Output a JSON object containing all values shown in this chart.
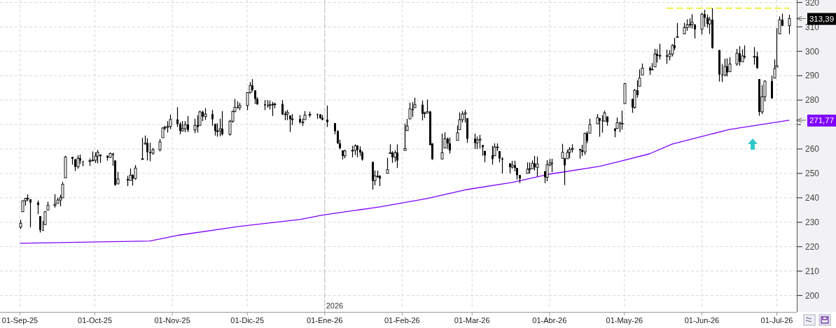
{
  "chart_data": {
    "type": "candlestick",
    "grid": true,
    "xlim": [
      "2025-08-24",
      "2026-07-09"
    ],
    "xticks": [
      {
        "value": "2025-09-01",
        "label": "01-Sep-25"
      },
      {
        "value": "2025-10-01",
        "label": "01-Oct-25"
      },
      {
        "value": "2025-11-01",
        "label": "01-Nov-25"
      },
      {
        "value": "2025-12-01",
        "label": "01-Dic-25"
      },
      {
        "value": "2026-01-01",
        "label": "01-Ene-26"
      },
      {
        "value": "2026-02-01",
        "label": "01-Feb-26"
      },
      {
        "value": "2026-03-01",
        "label": "01-Mar-26"
      },
      {
        "value": "2026-04-01",
        "label": "01-Abr-26"
      },
      {
        "value": "2026-05-01",
        "label": "01-May-26"
      },
      {
        "value": "2026-06-01",
        "label": "01-Jun-26"
      },
      {
        "value": "2026-07-01",
        "label": "01-Jul-26"
      }
    ],
    "ylim": [
      195,
      321
    ],
    "yticks": [
      200,
      210,
      220,
      230,
      240,
      250,
      260,
      {
        "value": 270,
        "label": null
      },
      280,
      290,
      300,
      310,
      320
    ],
    "x": [
      "2025-09-01",
      "2025-09-02",
      "2025-09-03",
      "2025-09-04",
      "2025-09-05",
      "2025-09-08",
      "2025-09-09",
      "2025-09-10",
      "2025-09-11",
      "2025-09-12",
      "2025-09-15",
      "2025-09-16",
      "2025-09-17",
      "2025-09-18",
      "2025-09-19",
      "2025-09-22",
      "2025-09-23",
      "2025-09-24",
      "2025-09-25",
      "2025-09-26",
      "2025-09-29",
      "2025-09-30",
      "2025-10-01",
      "2025-10-02",
      "2025-10-03",
      "2025-10-06",
      "2025-10-07",
      "2025-10-08",
      "2025-10-09",
      "2025-10-10",
      "2025-10-14",
      "2025-10-15",
      "2025-10-16",
      "2025-10-17",
      "2025-10-20",
      "2025-10-21",
      "2025-10-22",
      "2025-10-23",
      "2025-10-24",
      "2025-10-27",
      "2025-10-28",
      "2025-10-29",
      "2025-10-30",
      "2025-10-31",
      "2025-11-03",
      "2025-11-04",
      "2025-11-05",
      "2025-11-06",
      "2025-11-07",
      "2025-11-10",
      "2025-11-11",
      "2025-11-12",
      "2025-11-13",
      "2025-11-14",
      "2025-11-17",
      "2025-11-18",
      "2025-11-19",
      "2025-11-20",
      "2025-11-21",
      "2025-11-24",
      "2025-11-25",
      "2025-11-26",
      "2025-11-27",
      "2025-11-28",
      "2025-12-01",
      "2025-12-02",
      "2025-12-03",
      "2025-12-04",
      "2025-12-05",
      "2025-12-08",
      "2025-12-09",
      "2025-12-10",
      "2025-12-11",
      "2025-12-12",
      "2025-12-15",
      "2025-12-16",
      "2025-12-17",
      "2025-12-18",
      "2025-12-19",
      "2025-12-22",
      "2025-12-23",
      "2025-12-24",
      "2025-12-26",
      "2025-12-29",
      "2025-12-30",
      "2025-12-31",
      "2026-01-02",
      "2026-01-05",
      "2026-01-06",
      "2026-01-07",
      "2026-01-08",
      "2026-01-09",
      "2026-01-12",
      "2026-01-13",
      "2026-01-14",
      "2026-01-15",
      "2026-01-16",
      "2026-01-20",
      "2026-01-21",
      "2026-01-22",
      "2026-01-23",
      "2026-01-26",
      "2026-01-27",
      "2026-01-28",
      "2026-01-29",
      "2026-01-30",
      "2026-02-02",
      "2026-02-03",
      "2026-02-04",
      "2026-02-05",
      "2026-02-06",
      "2026-02-09",
      "2026-02-10",
      "2026-02-11",
      "2026-02-12",
      "2026-02-13",
      "2026-02-17",
      "2026-02-18",
      "2026-02-19",
      "2026-02-20",
      "2026-02-23",
      "2026-02-24",
      "2026-02-25",
      "2026-02-26",
      "2026-02-27",
      "2026-03-02",
      "2026-03-03",
      "2026-03-04",
      "2026-03-05",
      "2026-03-06",
      "2026-03-09",
      "2026-03-10",
      "2026-03-11",
      "2026-03-12",
      "2026-03-13",
      "2026-03-16",
      "2026-03-17",
      "2026-03-18",
      "2026-03-19",
      "2026-03-20",
      "2026-03-23",
      "2026-03-24",
      "2026-03-25",
      "2026-03-26",
      "2026-03-27",
      "2026-03-30",
      "2026-03-31",
      "2026-04-01",
      "2026-04-02",
      "2026-04-06",
      "2026-04-07",
      "2026-04-08",
      "2026-04-09",
      "2026-04-10",
      "2026-04-13",
      "2026-04-14",
      "2026-04-15",
      "2026-04-16",
      "2026-04-17",
      "2026-04-20",
      "2026-04-21",
      "2026-04-22",
      "2026-04-23",
      "2026-04-24",
      "2026-04-27",
      "2026-04-28",
      "2026-04-29",
      "2026-04-30",
      "2026-05-01",
      "2026-05-04",
      "2026-05-05",
      "2026-05-06",
      "2026-05-07",
      "2026-05-08",
      "2026-05-11",
      "2026-05-12",
      "2026-05-13",
      "2026-05-14",
      "2026-05-15",
      "2026-05-18",
      "2026-05-19",
      "2026-05-20",
      "2026-05-21",
      "2026-05-22",
      "2026-05-25",
      "2026-05-26",
      "2026-05-27",
      "2026-05-28",
      "2026-05-29",
      "2026-06-01",
      "2026-06-02",
      "2026-06-03",
      "2026-06-04",
      "2026-06-05",
      "2026-06-08",
      "2026-06-09",
      "2026-06-10",
      "2026-06-11",
      "2026-06-12",
      "2026-06-15",
      "2026-06-16",
      "2026-06-17",
      "2026-06-18",
      "2026-06-22",
      "2026-06-23",
      "2026-06-24",
      "2026-06-25",
      "2026-06-26",
      "2026-06-29",
      "2026-06-30",
      "2026-07-01",
      "2026-07-02",
      "2026-07-03",
      "2026-07-06"
    ],
    "ohlc": [
      [
        228,
        231,
        227.2,
        229.6
      ],
      [
        234.3,
        238.9,
        234.3,
        238.8
      ],
      [
        238.8,
        240,
        236.8,
        239.8
      ],
      [
        239.8,
        241.4,
        238.6,
        239.8
      ],
      [
        239.4,
        239.4,
        227.9,
        238.1
      ],
      [
        238.1,
        238.9,
        233.3,
        237.1
      ],
      [
        232.5,
        232.5,
        225.8,
        226.8
      ],
      [
        226.8,
        230.6,
        226.5,
        226.7
      ],
      [
        229,
        234.6,
        229,
        234.3
      ],
      [
        235,
        238.4,
        235,
        236.9
      ],
      [
        236.9,
        241.5,
        236,
        237.4
      ],
      [
        237.7,
        240.1,
        237.7,
        239.1
      ],
      [
        239.1,
        241.2,
        236.5,
        240
      ],
      [
        240,
        246.5,
        240,
        245.5
      ],
      [
        248.2,
        257.2,
        248.2,
        256.7
      ],
      [
        256.7,
        256.8,
        253.6,
        256
      ],
      [
        255.8,
        255.8,
        251,
        252.7
      ],
      [
        252.7,
        257.4,
        251.9,
        256.2
      ],
      [
        256.2,
        257.7,
        253.9,
        255.3
      ],
      [
        255,
        255,
        252.9,
        254.9
      ],
      [
        254.9,
        256.1,
        253.1,
        255.2
      ],
      [
        255.2,
        259,
        255,
        255.4
      ],
      [
        255.4,
        258.6,
        254.3,
        257.1
      ],
      [
        257.1,
        259.6,
        254.1,
        258.6
      ],
      [
        257.7,
        257.7,
        254.3,
        257.1
      ],
      [
        257.1,
        257.4,
        255.2,
        256.5
      ],
      [
        256.5,
        258.6,
        256.3,
        258.1
      ],
      [
        258.1,
        258.2,
        253.1,
        257.6
      ],
      [
        255.3,
        255.3,
        244.9,
        245.3
      ],
      [
        245.7,
        250.6,
        245.7,
        247.7
      ],
      [
        247.7,
        249,
        244.8,
        247.1
      ],
      [
        247.1,
        252,
        247,
        249.3
      ],
      [
        249.3,
        249.6,
        245,
        247.9
      ],
      [
        247.9,
        253.4,
        247.4,
        252.2
      ],
      [
        255.7,
        264.6,
        255.7,
        256
      ],
      [
        262,
        265.5,
        261.9,
        262.4
      ],
      [
        262.4,
        264.4,
        255.3,
        258.7
      ],
      [
        258.7,
        262.6,
        255,
        258.3
      ],
      [
        258.3,
        260.4,
        257.6,
        259.7
      ],
      [
        259.7,
        264.1,
        259,
        262.9
      ],
      [
        264.6,
        268.8,
        264.6,
        268.6
      ],
      [
        268.6,
        269.5,
        267.8,
        268.9
      ],
      [
        268.9,
        271.4,
        266.7,
        269.2
      ],
      [
        269.2,
        274.1,
        268.1,
        272.1
      ],
      [
        272.1,
        277.1,
        269,
        270.2
      ],
      [
        270.2,
        271,
        266,
        267.4
      ],
      [
        267.4,
        271.4,
        267.1,
        268.3
      ],
      [
        268.3,
        271.4,
        266.9,
        270
      ],
      [
        270,
        273.5,
        266.9,
        267.8
      ],
      [
        267.8,
        272.4,
        266.5,
        269.7
      ],
      [
        269.7,
        273.8,
        266.7,
        269
      ],
      [
        269.7,
        275.7,
        269.7,
        275.2
      ],
      [
        275.2,
        275.7,
        271.4,
        273.3
      ],
      [
        273.3,
        276.7,
        271.9,
        274.3
      ],
      [
        274.3,
        276,
        269.5,
        272.2
      ],
      [
        270.3,
        270.3,
        265.5,
        267.4
      ],
      [
        267.4,
        270.5,
        265,
        267.4
      ],
      [
        267.4,
        272.4,
        265.2,
        268.3
      ],
      [
        268.3,
        275.5,
        265.5,
        266
      ],
      [
        266,
        271.9,
        265.5,
        271.4
      ],
      [
        271.4,
        275.7,
        270.7,
        275.4
      ],
      [
        275.4,
        280.5,
        275,
        277.1
      ],
      [
        277.1,
        279.5,
        276.5,
        276.9
      ],
      [
        276.9,
        278.9,
        275.9,
        277.8
      ],
      [
        277.8,
        283.3,
        275.9,
        283.1
      ],
      [
        283.1,
        287.4,
        282.7,
        286
      ],
      [
        286,
        288.6,
        283.6,
        284.3
      ],
      [
        284,
        284,
        278.4,
        280.5
      ],
      [
        280.5,
        281.2,
        278.1,
        278.3
      ],
      [
        278.3,
        280,
        275.9,
        277.9
      ],
      [
        277.9,
        280,
        276.9,
        277.8
      ],
      [
        277.8,
        279.8,
        276.2,
        278.1
      ],
      [
        278.1,
        279.3,
        273.5,
        278.3
      ],
      [
        278.3,
        279,
        276.7,
        278.4
      ],
      [
        278.4,
        280,
        273.9,
        274.2
      ],
      [
        274.2,
        275.5,
        271.8,
        274.3
      ],
      [
        274.3,
        276,
        271.8,
        275
      ],
      [
        273.7,
        273.7,
        267,
        272.2
      ],
      [
        272.2,
        274.3,
        269.8,
        272.3
      ],
      [
        272.3,
        273.9,
        270.4,
        271
      ],
      [
        271,
        272.5,
        269.4,
        271
      ],
      [
        272,
        275.5,
        272,
        273.9
      ],
      [
        273.9,
        275.3,
        272.9,
        274.2
      ],
      [
        274.2,
        274.5,
        272.3,
        274.1
      ],
      [
        274.1,
        274.3,
        272.2,
        272.7
      ],
      [
        272.7,
        273.9,
        271.7,
        272
      ],
      [
        272,
        277.8,
        269,
        271
      ],
      [
        270.6,
        270.6,
        266,
        267.3
      ],
      [
        267.3,
        267.7,
        262.1,
        262.3
      ],
      [
        262.3,
        263.8,
        259.9,
        260.4
      ],
      [
        259.4,
        259.4,
        255.7,
        257.2
      ],
      [
        257.2,
        259.7,
        256.2,
        259.2
      ],
      [
        259.2,
        261.3,
        256.6,
        259.4
      ],
      [
        259.4,
        261.9,
        257.5,
        261.3
      ],
      [
        261.3,
        261.6,
        256.6,
        259.7
      ],
      [
        259.7,
        261.1,
        257.2,
        258.6
      ],
      [
        258.6,
        259.1,
        255.2,
        255.7
      ],
      [
        254.7,
        254.7,
        243.4,
        247
      ],
      [
        247,
        251.2,
        245.1,
        248.9
      ],
      [
        248.9,
        251.2,
        248.1,
        248.9
      ],
      [
        248.9,
        249.3,
        244.8,
        247.9
      ],
      [
        250,
        256.4,
        250,
        251.5
      ],
      [
        258.1,
        261.9,
        258.1,
        258.5
      ],
      [
        258.5,
        259.1,
        254.3,
        256.6
      ],
      [
        256.6,
        259.4,
        254.7,
        258.5
      ],
      [
        258.5,
        261.9,
        252.2,
        255.3
      ],
      [
        259.4,
        270.4,
        259.4,
        260.2
      ],
      [
        267.5,
        272.3,
        267.5,
        269.4
      ],
      [
        272.3,
        278.9,
        272.3,
        276.4
      ],
      [
        276.4,
        279.2,
        273.1,
        276
      ],
      [
        276.9,
        281,
        276.9,
        278.1
      ],
      [
        278.1,
        279.8,
        271.7,
        274.5
      ],
      [
        274.5,
        275.3,
        272.7,
        274.8
      ],
      [
        274.8,
        280.2,
        274.5,
        275.3
      ],
      [
        275.3,
        275.6,
        261.6,
        261.6
      ],
      [
        262.3,
        262.3,
        255.5,
        255.9
      ],
      [
        255.9,
        266.3,
        255.8,
        258.5
      ],
      [
        260.4,
        266.8,
        260.4,
        264.2
      ],
      [
        264.2,
        264.7,
        260,
        262.3
      ],
      [
        262.3,
        264.7,
        258.1,
        259.4
      ],
      [
        263.5,
        269.6,
        263.5,
        266.6
      ],
      [
        267.9,
        275,
        267.9,
        272
      ],
      [
        272,
        275.5,
        270.8,
        274.3
      ],
      [
        274.3,
        276,
        270.8,
        274.8
      ],
      [
        272.6,
        272.6,
        262.5,
        264.2
      ],
      [
        264.2,
        266.3,
        260,
        262.5
      ],
      [
        262.5,
        265.1,
        260,
        263.7
      ],
      [
        263.7,
        265.8,
        260.2,
        264
      ],
      [
        261.6,
        261.6,
        257.2,
        260.7
      ],
      [
        259.2,
        259.2,
        254.5,
        257.4
      ],
      [
        257.4,
        261.3,
        253.6,
        255.9
      ],
      [
        257.2,
        262.3,
        257.2,
        260.8
      ],
      [
        260.8,
        262.3,
        259.1,
        260.8
      ],
      [
        259.1,
        259.1,
        254.5,
        256.1
      ],
      [
        256.1,
        256.6,
        250,
        255.7
      ],
      [
        254.1,
        254.1,
        250,
        252.6
      ],
      [
        252.6,
        255.2,
        251.9,
        253.4
      ],
      [
        253.4,
        255.2,
        250.8,
        252.2
      ],
      [
        252.2,
        252.2,
        247.5,
        249.3
      ],
      [
        249.3,
        249.3,
        246,
        247.9
      ],
      [
        250,
        254.5,
        250,
        251.7
      ],
      [
        251.7,
        254.5,
        250,
        251.9
      ],
      [
        251.9,
        255.3,
        251.9,
        254.1
      ],
      [
        254.1,
        257.2,
        251.2,
        252.5
      ],
      [
        252.5,
        256.9,
        248.7,
        253.8
      ],
      [
        250.9,
        250.9,
        246,
        248.4
      ],
      [
        248.4,
        255.4,
        246.8,
        253.5
      ],
      [
        253.5,
        255.9,
        252.9,
        254.3
      ],
      [
        254.3,
        256,
        250.5,
        254
      ],
      [
        256.2,
        262.1,
        256.2,
        258.6
      ],
      [
        256.2,
        256.2,
        245.2,
        253.3
      ],
      [
        256,
        259.7,
        256,
        258.6
      ],
      [
        258.6,
        260.8,
        256.2,
        259.8
      ],
      [
        259.8,
        261.9,
        258.6,
        260.2
      ],
      [
        260,
        260,
        256,
        259.5
      ],
      [
        259.5,
        261.7,
        257.1,
        258.8
      ],
      [
        258.8,
        266.7,
        257.6,
        266.4
      ],
      [
        266.4,
        267.2,
        262.4,
        263.3
      ],
      [
        266.5,
        272.4,
        266.5,
        270
      ],
      [
        270.3,
        274.3,
        270.3,
        272.9
      ],
      [
        272.6,
        272.6,
        265,
        271.6
      ],
      [
        271.6,
        273.8,
        266.7,
        271.4
      ],
      [
        271.4,
        275.7,
        271.2,
        274.8
      ],
      [
        273.3,
        273.3,
        269.5,
        271
      ],
      [
        268.4,
        268.4,
        264.8,
        267.4
      ],
      [
        268.4,
        272.9,
        268.4,
        270.7
      ],
      [
        270.7,
        271.2,
        266.9,
        270.5
      ],
      [
        270.5,
        275.7,
        267.9,
        270.5
      ],
      [
        278.6,
        287.1,
        278.6,
        286.7
      ],
      [
        280.5,
        280.5,
        274.8,
        277
      ],
      [
        277,
        284.6,
        276.5,
        284
      ],
      [
        284,
        288.1,
        281,
        282.1
      ],
      [
        285.7,
        292.6,
        285.7,
        289
      ],
      [
        290.3,
        295,
        290.3,
        293.1
      ],
      [
        293.1,
        293.8,
        290.3,
        292.2
      ],
      [
        292.4,
        295.2,
        292.4,
        292.6
      ],
      [
        293.6,
        301,
        293.6,
        298.9
      ],
      [
        298.9,
        300.8,
        295.4,
        298.1
      ],
      [
        298.1,
        303.1,
        296.6,
        298.3
      ],
      [
        298.3,
        300.7,
        294.8,
        297.8
      ],
      [
        297.8,
        300.5,
        296.2,
        298.9
      ],
      [
        298.9,
        302.9,
        297.9,
        302.4
      ],
      [
        302.4,
        305.5,
        300.5,
        301.4
      ],
      [
        305.7,
        311.6,
        305.7,
        305.9
      ],
      [
        307.1,
        311.7,
        307.1,
        309.7
      ],
      [
        309.7,
        313.1,
        308.4,
        310.8
      ],
      [
        310.8,
        313.5,
        309.5,
        311
      ],
      [
        311,
        315.2,
        309.3,
        311.9
      ],
      [
        311,
        311,
        305.2,
        309
      ],
      [
        309,
        315.7,
        306.9,
        315.2
      ],
      [
        315.2,
        317,
        310,
        313.8
      ],
      [
        313.8,
        315,
        309.7,
        311.2
      ],
      [
        311.2,
        314.1,
        307.1,
        312.9
      ],
      [
        312.9,
        317.6,
        301.1,
        301.4
      ],
      [
        300.5,
        300.5,
        287.6,
        290.5
      ],
      [
        290.5,
        294.8,
        287.4,
        290.3
      ],
      [
        290.3,
        297,
        289.7,
        293.8
      ],
      [
        293.8,
        297.1,
        289.7,
        291.4
      ],
      [
        291.6,
        297.6,
        291.6,
        294.8
      ],
      [
        294.8,
        301,
        294.1,
        299.2
      ],
      [
        299.2,
        302.1,
        294.1,
        295.7
      ],
      [
        295.7,
        300.8,
        295.7,
        298.1
      ],
      [
        298.1,
        302.4,
        297,
        297.6
      ],
      [
        297.6,
        301.7,
        294.5,
        297.9
      ],
      [
        297.9,
        299.8,
        292.9,
        293.1
      ],
      [
        288.6,
        288.6,
        273.6,
        275.2
      ],
      [
        275.2,
        286.2,
        274.3,
        281.4
      ],
      [
        281.4,
        288.1,
        279.5,
        287.8
      ],
      [
        287.8,
        290,
        280.5,
        280.8
      ],
      [
        289,
        296.7,
        289,
        292.9
      ],
      [
        293.5,
        309.5,
        293.5,
        294.1
      ],
      [
        307.1,
        314.3,
        307.1,
        312.9
      ],
      [
        312.9,
        315.4,
        310.3,
        310.5
      ],
      [
        310.5,
        315,
        307.1,
        313.39
      ]
    ],
    "color": "#000000",
    "series": [
      {
        "type": "line",
        "color": "#8000ff",
        "x": [
          "2025-09-01",
          "2025-10-23",
          "2025-11-03",
          "2025-11-28",
          "2025-12-22",
          "2025-12-31",
          "2026-01-23",
          "2026-02-11",
          "2026-02-27",
          "2026-03-17",
          "2026-04-01",
          "2026-04-21",
          "2026-04-29",
          "2026-05-11",
          "2026-05-20",
          "2026-06-01",
          "2026-06-12",
          "2026-07-06"
        ],
        "values": [
          221.4,
          222.3,
          224.6,
          228.3,
          231.1,
          232.9,
          236.3,
          239.7,
          243.4,
          246.3,
          249.7,
          252.9,
          254.9,
          258,
          262,
          265.1,
          268,
          271.77
        ]
      },
      {
        "type": "line",
        "color": "#f0f03c",
        "line_style": "dashed",
        "x": [
          "2026-05-18",
          "2026-07-06"
        ],
        "values": [
          317.6,
          317.6
        ]
      }
    ],
    "ref_lines": [
      {
        "axis": "x",
        "value": "2026-01-01",
        "label": "2026"
      }
    ],
    "annotations": [
      {
        "text": "313,39",
        "x": "2026-07-06",
        "y": 313.39
      },
      {
        "text": "271,77",
        "x": "2026-07-06",
        "y": 271.77
      }
    ]
  }
}
